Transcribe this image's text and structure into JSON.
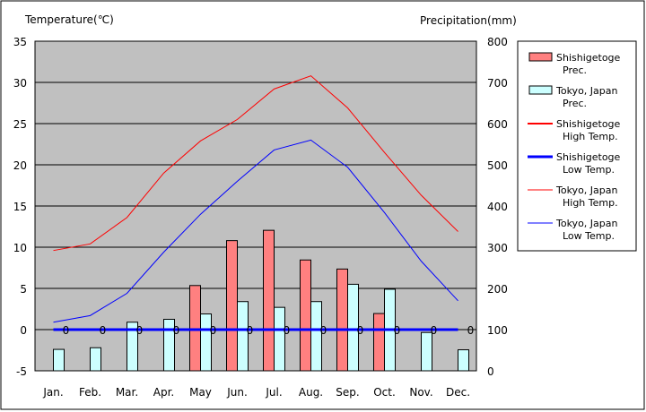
{
  "chart_data": {
    "type": "bar+line",
    "categories": [
      "Jan.",
      "Feb.",
      "Mar.",
      "Apr.",
      "May",
      "Jun.",
      "Jul.",
      "Aug.",
      "Sep.",
      "Oct.",
      "Nov.",
      "Dec."
    ],
    "y_left": {
      "label": "Temperature(℃)",
      "ylim": [
        -5,
        35
      ],
      "ticks": [
        -5,
        0,
        5,
        10,
        15,
        20,
        25,
        30,
        35
      ]
    },
    "y_right": {
      "label": "Precipitation(mm)",
      "ylim": [
        0,
        800
      ],
      "ticks": [
        0,
        100,
        200,
        300,
        400,
        500,
        600,
        700,
        800
      ]
    },
    "grid": true,
    "legend_position": "right",
    "bar_series": [
      {
        "name_line1": "Shishigetoge",
        "name_line2": "Prec.",
        "color": "#ff8080",
        "values": [
          0,
          0,
          0,
          0,
          207,
          316,
          341,
          269,
          247,
          139,
          0,
          0
        ]
      },
      {
        "name_line1": "Tokyo, Japan",
        "name_line2": "Prec.",
        "color": "#ccffff",
        "values": [
          52,
          56,
          118,
          125,
          138,
          168,
          154,
          168,
          210,
          198,
          93,
          51
        ]
      }
    ],
    "line_series": [
      {
        "name_line1": "Shishigetoge",
        "name_line2": "High Temp.",
        "color": "#ff0000",
        "width": 2,
        "values": [
          0,
          0,
          0,
          0,
          0,
          0,
          0,
          0,
          0,
          0,
          0,
          0
        ]
      },
      {
        "name_line1": "Shishigetoge",
        "name_line2": "Low Temp.",
        "color": "#0000ff",
        "width": 3,
        "values": [
          0,
          0,
          0,
          0,
          0,
          0,
          0,
          0,
          0,
          0,
          0,
          0
        ]
      },
      {
        "name_line1": "Tokyo, Japan",
        "name_line2": "High Temp.",
        "color": "#ff0000",
        "width": 1,
        "values": [
          9.6,
          10.4,
          13.6,
          19.0,
          22.9,
          25.5,
          29.2,
          30.8,
          26.9,
          21.5,
          16.3,
          11.9
        ]
      },
      {
        "name_line1": "Tokyo, Japan",
        "name_line2": "Low Temp.",
        "color": "#0000ff",
        "width": 1,
        "values": [
          0.9,
          1.7,
          4.4,
          9.4,
          14.0,
          18.0,
          21.8,
          23.0,
          19.7,
          14.2,
          8.3,
          3.5
        ]
      }
    ],
    "zero_markers": [
      0,
      0,
      0,
      0,
      0,
      0,
      0,
      0,
      0,
      0,
      0,
      0
    ]
  }
}
